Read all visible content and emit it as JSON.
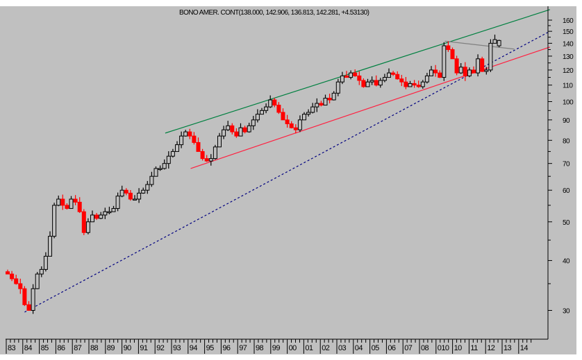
{
  "chart_data": {
    "type": "candlestick",
    "title": "BONO AMER. CONT(138.000, 142.906, 136.813, 142.281, +4.53130)",
    "scale": "log",
    "ylim": [
      28,
      168
    ],
    "y_ticks": [
      30,
      40,
      50,
      60,
      70,
      80,
      90,
      100,
      110,
      120,
      130,
      140,
      150,
      160
    ],
    "x_labels": [
      "83",
      "84",
      "85",
      "86",
      "87",
      "88",
      "89",
      "90",
      "91",
      "92",
      "93",
      "94",
      "95",
      "96",
      "97",
      "98",
      "99",
      "00",
      "01",
      "02",
      "03",
      "04",
      "05",
      "06",
      "07",
      "08",
      "010",
      "10",
      "11",
      "12",
      "13",
      "14"
    ],
    "period": "quarterly",
    "start_year": 1983,
    "closes": [
      37,
      36,
      35,
      34,
      31,
      30,
      34,
      37,
      38,
      41,
      46,
      55,
      57,
      55,
      54,
      57,
      56,
      53,
      47,
      50,
      52,
      51,
      52,
      53,
      53,
      54,
      58,
      60,
      59,
      57,
      57,
      59,
      60,
      62,
      65,
      68,
      68,
      70,
      73,
      75,
      78,
      82,
      84,
      82,
      79,
      75,
      72,
      71,
      72,
      77,
      82,
      85,
      87,
      84,
      82,
      86,
      84,
      87,
      90,
      93,
      95,
      97,
      101,
      98,
      94,
      90,
      88,
      86,
      85,
      90,
      93,
      94,
      97,
      99,
      98,
      102,
      101,
      105,
      112,
      116,
      115,
      118,
      116,
      113,
      109,
      112,
      113,
      110,
      113,
      115,
      118,
      117,
      114,
      112,
      109,
      111,
      110,
      109,
      112,
      116,
      120,
      118,
      115,
      138,
      135,
      128,
      118,
      122,
      116,
      120,
      118,
      128,
      119,
      120,
      140,
      143,
      138
    ],
    "last_candle": {
      "open": 138.0,
      "high": 142.906,
      "low": 136.813,
      "close": 142.281,
      "change": 4.5313
    },
    "trendlines": [
      {
        "name": "upper-channel",
        "color": "#008040",
        "style": "solid",
        "from": [
          1992.3,
          83.4
        ],
        "to": [
          2015.0,
          170
        ]
      },
      {
        "name": "lower-channel",
        "color": "#ff2040",
        "style": "solid",
        "from": [
          1993.8,
          68
        ],
        "to": [
          2015.0,
          137
        ]
      },
      {
        "name": "long-term-support",
        "color": "#000080",
        "style": "dashed",
        "from": [
          1984.0,
          29.7
        ],
        "to": [
          2015.0,
          150
        ]
      },
      {
        "name": "resistance",
        "color": "#808080",
        "style": "solid",
        "from": [
          2008.8,
          141.7
        ],
        "to": [
          2012.9,
          135.4
        ]
      }
    ],
    "colors": {
      "up": "#000000",
      "down": "#ff0000",
      "background": "#c0c0c0"
    }
  }
}
